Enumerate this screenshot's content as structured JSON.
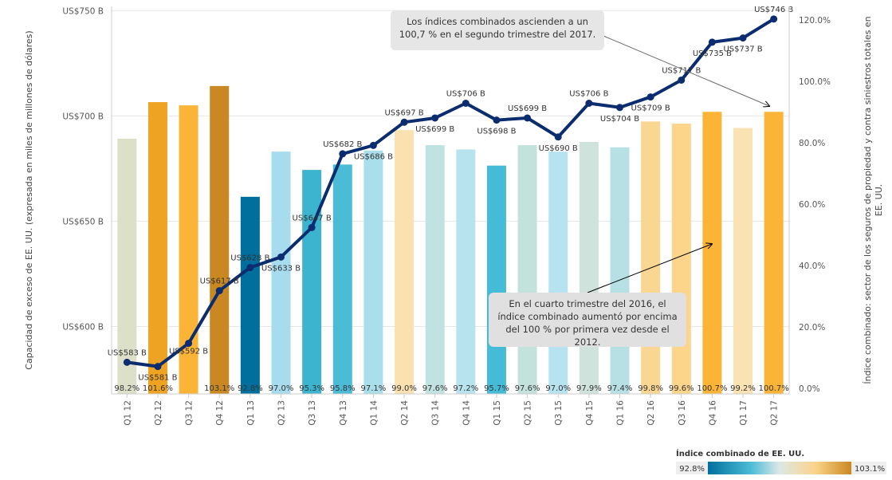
{
  "chart_data": {
    "type": "bar+line",
    "categories": [
      "Q1 12",
      "Q2 12",
      "Q3 12",
      "Q4 12",
      "Q1 13",
      "Q2 13",
      "Q3 13",
      "Q4 13",
      "Q1 14",
      "Q2 14",
      "Q3 14",
      "Q4 14",
      "Q1 15",
      "Q2 15",
      "Q3 15",
      "Q4 15",
      "Q1 16",
      "Q2 16",
      "Q3 16",
      "Q4 16",
      "Q1 17",
      "Q2 17"
    ],
    "bar_series": {
      "name": "Índice combinado de EE. UU.",
      "values": [
        98.2,
        101.6,
        101.3,
        103.1,
        92.8,
        97.0,
        95.3,
        95.8,
        97.1,
        99.0,
        97.6,
        97.2,
        95.7,
        97.6,
        97.0,
        97.9,
        97.4,
        99.8,
        99.6,
        100.7,
        99.2,
        100.7
      ],
      "labels": [
        "98.2%",
        "101.6%",
        "",
        "103.1%",
        "92.8%",
        "97.0%",
        "95.3%",
        "95.8%",
        "97.1%",
        "99.0%",
        "97.6%",
        "97.2%",
        "95.7%",
        "97.6%",
        "97.0%",
        "97.9%",
        "97.4%",
        "99.8%",
        "99.6%",
        "100.7%",
        "99.2%",
        "100.7%"
      ],
      "colors": [
        "#dde0c8",
        "#eea323",
        "#fbb436",
        "#c98822",
        "#006f9d",
        "#a6dced",
        "#3db4cf",
        "#4cbcd6",
        "#a9deeb",
        "#fbe1b0",
        "#c0e2e0",
        "#b7e3ef",
        "#46bbd7",
        "#c4e2dc",
        "#b6e3ef",
        "#cfe2dc",
        "#b7e0e4",
        "#f9d691",
        "#fcd48a",
        "#fbb436",
        "#fbe2b3",
        "#fbb436"
      ]
    },
    "line_series": {
      "name": "Capacidad de exceso",
      "values": [
        583,
        581,
        592,
        617,
        628,
        633,
        647,
        682,
        686,
        697,
        699,
        706,
        698,
        699,
        690,
        706,
        704,
        709,
        717,
        735,
        737,
        746
      ],
      "labels": [
        "US$583 B",
        "US$581 B",
        "US$592 B",
        "US$617 B",
        "US$628 B",
        "US$633 B",
        "US$647 B",
        "US$682 B",
        "US$686 B",
        "US$697 B",
        "US$699 B",
        "US$706 B",
        "US$698 B",
        "US$699 B",
        "US$690 B",
        "US$706 B",
        "US$704 B",
        "US$709 B",
        "US$717 B",
        "US$735 B",
        "US$737 B",
        "US$746 B"
      ],
      "color": "#0b2d6f"
    },
    "y_left": {
      "label": "Capacidad de exceso de EE. UU. (expresada en miles de millones de dólares)",
      "ticks": [
        600,
        650,
        700,
        750
      ],
      "tick_labels": [
        "US$600 B",
        "US$650 B",
        "US$700 B",
        "US$750 B"
      ],
      "range": [
        568,
        752
      ]
    },
    "y_right": {
      "label": "Índice combinado: sector de los seguros de propiedad y contra siniestros totales en EE. UU.",
      "ticks": [
        0,
        20,
        40,
        60,
        80,
        100,
        120
      ],
      "tick_labels": [
        "0.0%",
        "20.0%",
        "40.0%",
        "60.0%",
        "80.0%",
        "100.0%",
        "120.0%"
      ],
      "bar_value_offset": 75,
      "bar_range": [
        75,
        104.2
      ]
    },
    "annotations": [
      {
        "text": "Los índices combinados ascienden a un 100,7 % en el segundo trimestre del 2017."
      },
      {
        "text": "En el cuarto trimestre del 2016, el índice combinado aumentó por encima del 100 % por primera vez desde el 2012."
      }
    ],
    "legend": {
      "title": "Índice combinado de EE. UU.",
      "min_label": "92.8%",
      "max_label": "103.1%",
      "placement": "bottom-right"
    },
    "grid": true
  }
}
